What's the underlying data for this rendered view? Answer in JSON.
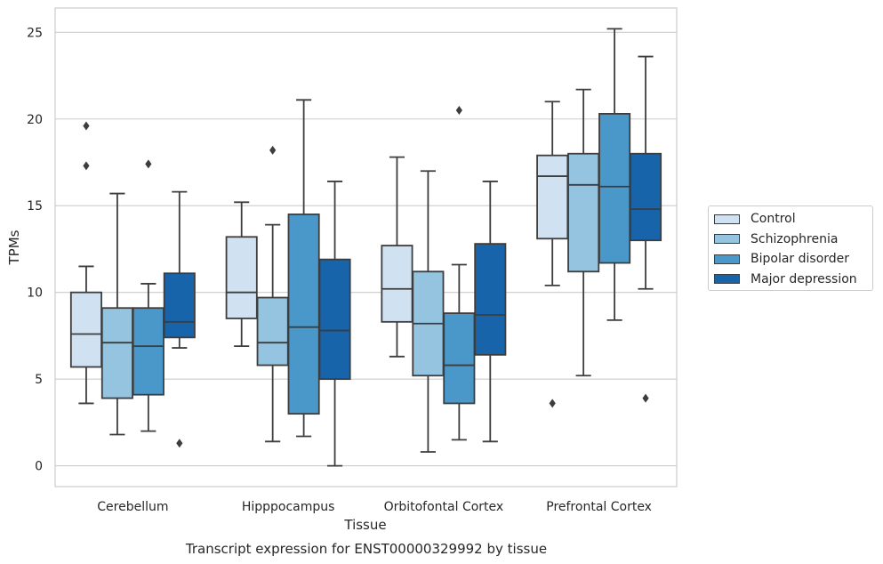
{
  "chart_data": {
    "type": "boxplot",
    "title": "",
    "caption": "Transcript expression for ENST00000329992 by tissue",
    "xlabel": "Tissue",
    "ylabel": "TPMs",
    "ylim": [
      -1.2,
      26.4
    ],
    "yticks": [
      0,
      5,
      10,
      15,
      20,
      25
    ],
    "grid": "horizontal",
    "legend_position": "right",
    "categories": [
      "Cerebellum",
      "Hipppocampus",
      "Orbitofontal Cortex",
      "Prefrontal Cortex"
    ],
    "series": [
      {
        "name": "Control",
        "color": "#d0e1f2",
        "boxes": [
          {
            "whislo": 3.6,
            "q1": 5.7,
            "med": 7.6,
            "q3": 10.0,
            "whishi": 11.5,
            "fliers": [
              17.3,
              19.6
            ]
          },
          {
            "whislo": 6.9,
            "q1": 8.5,
            "med": 10.0,
            "q3": 13.2,
            "whishi": 15.2,
            "fliers": []
          },
          {
            "whislo": 6.3,
            "q1": 8.3,
            "med": 10.2,
            "q3": 12.7,
            "whishi": 17.8,
            "fliers": []
          },
          {
            "whislo": 10.4,
            "q1": 13.1,
            "med": 16.7,
            "q3": 17.9,
            "whishi": 21.0,
            "fliers": [
              3.6
            ]
          }
        ]
      },
      {
        "name": "Schizophrenia",
        "color": "#94c4df",
        "boxes": [
          {
            "whislo": 1.8,
            "q1": 3.9,
            "med": 7.1,
            "q3": 9.1,
            "whishi": 15.7,
            "fliers": []
          },
          {
            "whislo": 1.4,
            "q1": 5.8,
            "med": 7.1,
            "q3": 9.7,
            "whishi": 13.9,
            "fliers": [
              18.2
            ]
          },
          {
            "whislo": 0.8,
            "q1": 5.2,
            "med": 8.2,
            "q3": 11.2,
            "whishi": 17.0,
            "fliers": []
          },
          {
            "whislo": 5.2,
            "q1": 11.2,
            "med": 16.2,
            "q3": 18.0,
            "whishi": 21.7,
            "fliers": []
          }
        ]
      },
      {
        "name": "Bipolar disorder",
        "color": "#4a98c9",
        "boxes": [
          {
            "whislo": 2.0,
            "q1": 4.1,
            "med": 6.9,
            "q3": 9.1,
            "whishi": 10.5,
            "fliers": [
              17.4
            ]
          },
          {
            "whislo": 1.7,
            "q1": 3.0,
            "med": 8.0,
            "q3": 14.5,
            "whishi": 21.1,
            "fliers": []
          },
          {
            "whislo": 1.5,
            "q1": 3.6,
            "med": 5.8,
            "q3": 8.8,
            "whishi": 11.6,
            "fliers": [
              20.5
            ]
          },
          {
            "whislo": 8.4,
            "q1": 11.7,
            "med": 16.1,
            "q3": 20.3,
            "whishi": 25.2,
            "fliers": []
          }
        ]
      },
      {
        "name": "Major depression",
        "color": "#1764ab",
        "boxes": [
          {
            "whislo": 6.8,
            "q1": 7.4,
            "med": 8.3,
            "q3": 11.1,
            "whishi": 15.8,
            "fliers": [
              1.3
            ]
          },
          {
            "whislo": 0.0,
            "q1": 5.0,
            "med": 7.8,
            "q3": 11.9,
            "whishi": 16.4,
            "fliers": []
          },
          {
            "whislo": 1.4,
            "q1": 6.4,
            "med": 8.7,
            "q3": 12.8,
            "whishi": 16.4,
            "fliers": []
          },
          {
            "whislo": 10.2,
            "q1": 13.0,
            "med": 14.8,
            "q3": 18.0,
            "whishi": 23.6,
            "fliers": [
              3.9
            ]
          }
        ]
      }
    ]
  }
}
